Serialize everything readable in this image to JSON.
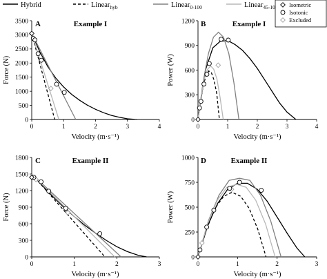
{
  "legend": {
    "lines": [
      {
        "label": "Hybrid",
        "sub": "",
        "color": "#000000",
        "dash": ""
      },
      {
        "label": "Linear",
        "sub": "hyb",
        "color": "#000000",
        "dash": "4,3"
      },
      {
        "label": "Linear",
        "sub": "0-100",
        "color": "#808080",
        "dash": ""
      },
      {
        "label": "Linear",
        "sub": "45-100",
        "color": "#b8b8b8",
        "dash": ""
      }
    ],
    "markers": [
      {
        "label": "Isometric",
        "shape": "diamond",
        "stroke": "#000000"
      },
      {
        "label": "Isotonic",
        "shape": "circle",
        "stroke": "#000000"
      },
      {
        "label": "Excluded",
        "shape": "diamond",
        "stroke": "#a0a0a0"
      }
    ]
  },
  "colors": {
    "hybrid": "#000000",
    "linear_hyb": "#000000",
    "linear_0_100": "#808080",
    "linear_45_100": "#b8b8b8",
    "excluded": "#a0a0a0"
  },
  "chart_data": [
    {
      "type": "line",
      "panel": "A",
      "title": "Example I",
      "xlabel": "Velocity (m·s⁻¹)",
      "ylabel": "Force (N)",
      "xlim": [
        0,
        4
      ],
      "ylim": [
        0,
        3500
      ],
      "xticks": [
        0,
        1,
        2,
        3,
        4
      ],
      "yticks": [
        0,
        500,
        1000,
        1500,
        2000,
        2500,
        3000,
        3500
      ],
      "series": [
        {
          "name": "Hybrid",
          "x": [
            0,
            0.25,
            0.5,
            0.75,
            1.0,
            1.25,
            1.5,
            1.75,
            2.0,
            2.25,
            2.5,
            2.75,
            3.0,
            3.25,
            3.3
          ],
          "y": [
            3050,
            2400,
            1880,
            1470,
            1150,
            890,
            680,
            505,
            360,
            240,
            145,
            75,
            25,
            2,
            0
          ]
        },
        {
          "name": "Linear hyb",
          "x": [
            0,
            0.72
          ],
          "y": [
            3050,
            0
          ]
        },
        {
          "name": "Linear 0-100",
          "x": [
            0,
            1.38
          ],
          "y": [
            3050,
            0
          ]
        },
        {
          "name": "Linear 45-100",
          "x": [
            0,
            0.85
          ],
          "y": [
            3050,
            0
          ]
        }
      ],
      "points": {
        "isometric": [
          [
            0,
            3050
          ]
        ],
        "isotonic": [
          [
            0.05,
            2870
          ],
          [
            0.1,
            2820
          ],
          [
            0.2,
            2330
          ],
          [
            0.3,
            2100
          ],
          [
            0.78,
            1250
          ],
          [
            1.02,
            960
          ]
        ],
        "excluded": [
          [
            0.6,
            1100
          ]
        ]
      }
    },
    {
      "type": "line",
      "panel": "B",
      "title": "Example I",
      "xlabel": "Velocity (m·s⁻¹)",
      "ylabel": "Power (W)",
      "xlim": [
        0,
        4
      ],
      "ylim": [
        0,
        1200
      ],
      "xticks": [
        0,
        1,
        2,
        3,
        4
      ],
      "yticks": [
        0,
        300,
        600,
        900,
        1200
      ],
      "series": [
        {
          "name": "Hybrid",
          "x": [
            0,
            0.25,
            0.5,
            0.75,
            1.0,
            1.25,
            1.5,
            1.75,
            2.0,
            2.25,
            2.5,
            2.75,
            3.0,
            3.3
          ],
          "y": [
            0,
            600,
            870,
            950,
            960,
            910,
            840,
            740,
            620,
            480,
            340,
            200,
            90,
            0
          ]
        },
        {
          "name": "Linear hyb",
          "x": [
            0,
            0.09,
            0.18,
            0.27,
            0.36,
            0.45,
            0.54,
            0.63,
            0.72
          ],
          "y": [
            0,
            240,
            420,
            530,
            590,
            570,
            480,
            320,
            0
          ]
        },
        {
          "name": "Linear 0-100",
          "x": [
            0,
            0.17,
            0.35,
            0.52,
            0.69,
            0.86,
            1.04,
            1.21,
            1.38
          ],
          "y": [
            0,
            450,
            800,
            1000,
            1060,
            1000,
            800,
            450,
            0
          ]
        },
        {
          "name": "Linear 45-100",
          "x": [
            0,
            0.11,
            0.21,
            0.32,
            0.43,
            0.53,
            0.64,
            0.74,
            0.85
          ],
          "y": [
            0,
            280,
            490,
            610,
            650,
            610,
            490,
            280,
            0
          ]
        }
      ],
      "points": {
        "isometric": [
          [
            0,
            0
          ]
        ],
        "isotonic": [
          [
            0.05,
            140
          ],
          [
            0.1,
            220
          ],
          [
            0.2,
            430
          ],
          [
            0.3,
            550
          ],
          [
            0.38,
            680
          ],
          [
            0.78,
            975
          ],
          [
            1.02,
            965
          ]
        ],
        "excluded": [
          [
            0.68,
            660
          ]
        ]
      }
    },
    {
      "type": "line",
      "panel": "C",
      "title": "Example II",
      "xlabel": "Velocity (m·s⁻¹)",
      "ylabel": "Force (N)",
      "xlim": [
        0,
        3
      ],
      "ylim": [
        0,
        1800
      ],
      "xticks": [
        0,
        1,
        2,
        3
      ],
      "yticks": [
        0,
        300,
        600,
        900,
        1200,
        1500,
        1800
      ],
      "series": [
        {
          "name": "Hybrid",
          "x": [
            0,
            0.25,
            0.5,
            0.75,
            1.0,
            1.25,
            1.5,
            1.75,
            2.0,
            2.25,
            2.5,
            2.7
          ],
          "y": [
            1500,
            1290,
            1090,
            900,
            730,
            570,
            430,
            300,
            185,
            95,
            30,
            0
          ]
        },
        {
          "name": "Linear hyb",
          "x": [
            0,
            1.72
          ],
          "y": [
            1500,
            0
          ]
        },
        {
          "name": "Linear 0-100",
          "x": [
            0,
            2.1
          ],
          "y": [
            1500,
            0
          ]
        },
        {
          "name": "Linear 45-100",
          "x": [
            0,
            1.95
          ],
          "y": [
            1500,
            0
          ]
        }
      ],
      "points": {
        "isometric": [
          [
            0,
            1440
          ]
        ],
        "isotonic": [
          [
            0.05,
            1440
          ],
          [
            0.22,
            1360
          ],
          [
            0.4,
            1190
          ],
          [
            0.8,
            880
          ],
          [
            1.6,
            420
          ]
        ],
        "excluded": [
          [
            0.1,
            1400
          ],
          [
            0.85,
            800
          ]
        ]
      }
    },
    {
      "type": "line",
      "panel": "D",
      "title": "Example II",
      "xlabel": "Velocity (m·s⁻¹)",
      "ylabel": "Power (W)",
      "xlim": [
        0,
        3
      ],
      "ylim": [
        0,
        1000
      ],
      "xticks": [
        0,
        1,
        2,
        3
      ],
      "yticks": [
        0,
        250,
        500,
        750,
        1000
      ],
      "series": [
        {
          "name": "Hybrid",
          "x": [
            0,
            0.25,
            0.5,
            0.75,
            1.0,
            1.25,
            1.5,
            1.75,
            2.0,
            2.25,
            2.5,
            2.7
          ],
          "y": [
            0,
            320,
            540,
            680,
            740,
            740,
            680,
            560,
            400,
            240,
            90,
            0
          ]
        },
        {
          "name": "Linear hyb",
          "x": [
            0,
            0.22,
            0.43,
            0.65,
            0.86,
            1.08,
            1.29,
            1.51,
            1.72
          ],
          "y": [
            0,
            280,
            490,
            610,
            650,
            610,
            490,
            280,
            0
          ]
        },
        {
          "name": "Linear 0-100",
          "x": [
            0,
            0.26,
            0.53,
            0.79,
            1.05,
            1.31,
            1.58,
            1.84,
            2.1
          ],
          "y": [
            0,
            360,
            620,
            770,
            790,
            770,
            620,
            360,
            0
          ]
        },
        {
          "name": "Linear 45-100",
          "x": [
            0,
            0.24,
            0.49,
            0.73,
            0.98,
            1.22,
            1.46,
            1.71,
            1.95
          ],
          "y": [
            0,
            330,
            570,
            700,
            730,
            700,
            570,
            330,
            0
          ]
        }
      ],
      "points": {
        "isometric": [
          [
            0,
            0
          ]
        ],
        "isotonic": [
          [
            0.05,
            70
          ],
          [
            0.22,
            300
          ],
          [
            0.4,
            470
          ],
          [
            0.8,
            690
          ],
          [
            1.05,
            750
          ],
          [
            1.6,
            670
          ]
        ],
        "excluded": [
          [
            0.1,
            140
          ],
          [
            0.85,
            680
          ]
        ]
      }
    }
  ]
}
